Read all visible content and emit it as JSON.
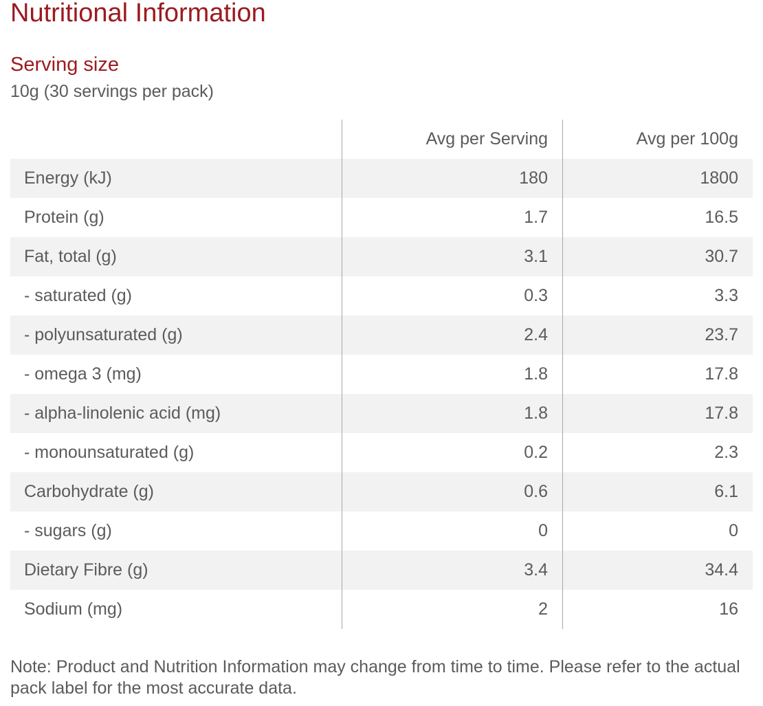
{
  "title": "Nutritional Information",
  "serving": {
    "heading": "Serving size",
    "value": "10g (30 servings per pack)"
  },
  "table": {
    "columns": [
      "",
      "Avg per Serving",
      "Avg per 100g"
    ],
    "rows": [
      {
        "label": "Energy (kJ)",
        "per_serving": "180",
        "per_100g": "1800"
      },
      {
        "label": "Protein (g)",
        "per_serving": "1.7",
        "per_100g": "16.5"
      },
      {
        "label": "Fat, total (g)",
        "per_serving": "3.1",
        "per_100g": "30.7"
      },
      {
        "label": "- saturated (g)",
        "per_serving": "0.3",
        "per_100g": "3.3"
      },
      {
        "label": "- polyunsaturated (g)",
        "per_serving": "2.4",
        "per_100g": "23.7"
      },
      {
        "label": "- omega 3 (mg)",
        "per_serving": "1.8",
        "per_100g": "17.8"
      },
      {
        "label": "- alpha-linolenic acid (mg)",
        "per_serving": "1.8",
        "per_100g": "17.8"
      },
      {
        "label": "- monounsaturated (g)",
        "per_serving": "0.2",
        "per_100g": "2.3"
      },
      {
        "label": "Carbohydrate (g)",
        "per_serving": "0.6",
        "per_100g": "6.1"
      },
      {
        "label": "- sugars (g)",
        "per_serving": "0",
        "per_100g": "0"
      },
      {
        "label": "Dietary Fibre (g)",
        "per_serving": "3.4",
        "per_100g": "34.4"
      },
      {
        "label": "Sodium (mg)",
        "per_serving": "2",
        "per_100g": "16"
      }
    ]
  },
  "note": "Note: Product and Nutrition Information may change from time to time. Please refer to the actual pack label for the most accurate data.",
  "colors": {
    "heading": "#9b1b20",
    "text": "#5b5b5b",
    "row_shade": "#f2f2f2",
    "divider": "#a6a6a6"
  }
}
